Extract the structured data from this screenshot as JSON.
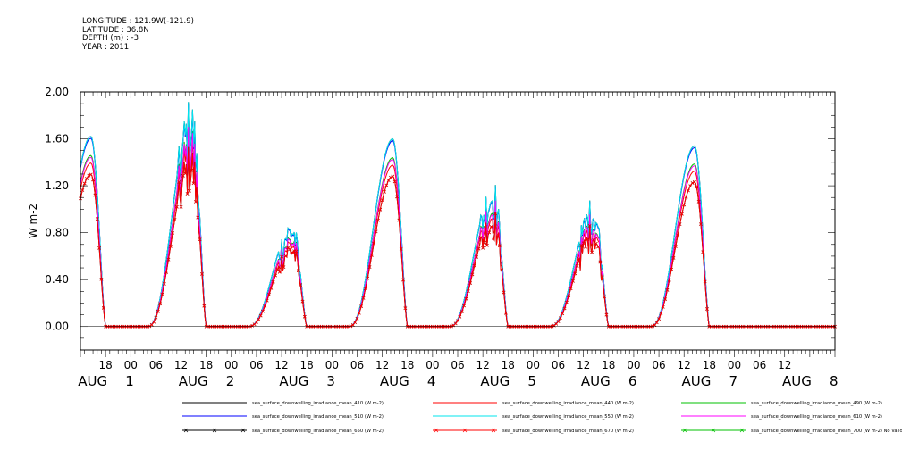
{
  "header": {
    "lines": [
      "LONGITUDE : 121.9W(-121.9)",
      "LATITUDE : 36.8N",
      "DEPTH (m) : -3",
      "YEAR : 2011"
    ]
  },
  "chart_data": {
    "type": "line",
    "ylabel": "W m-2",
    "ylim": [
      -0.2,
      2.0
    ],
    "y_ticks": [
      "2.00",
      "1.60",
      "1.20",
      "0.80",
      "0.40",
      "0.00"
    ],
    "y_tick_values": [
      2.0,
      1.6,
      1.2,
      0.8,
      0.4,
      0.0
    ],
    "x_hour_ticks": [
      "18",
      "00",
      "06",
      "12",
      "18",
      "00",
      "06",
      "12",
      "18",
      "00",
      "06",
      "12",
      "18",
      "00",
      "06",
      "12",
      "18",
      "00",
      "06",
      "12",
      "18",
      "00",
      "06",
      "12",
      "18",
      "00",
      "06",
      "12"
    ],
    "x_date_labels": [
      {
        "month": "AUG",
        "day": "1"
      },
      {
        "month": "AUG",
        "day": "2"
      },
      {
        "month": "AUG",
        "day": "3"
      },
      {
        "month": "AUG",
        "day": "4"
      },
      {
        "month": "AUG",
        "day": "5"
      },
      {
        "month": "AUG",
        "day": "6"
      },
      {
        "month": "AUG",
        "day": "7"
      },
      {
        "month": "AUG",
        "day": "8"
      }
    ],
    "days": [
      {
        "date": "AUG 1",
        "peak_max": 1.62,
        "spiky": false
      },
      {
        "date": "AUG 2",
        "peak_max": 1.8,
        "spiky": true
      },
      {
        "date": "AUG 3",
        "peak_max": 0.86,
        "spiky": true
      },
      {
        "date": "AUG 4",
        "peak_max": 1.6,
        "spiky": false
      },
      {
        "date": "AUG 5",
        "peak_max": 1.17,
        "spiky": true
      },
      {
        "date": "AUG 6",
        "peak_max": 1.02,
        "spiky": true
      },
      {
        "date": "AUG 7",
        "peak_max": 1.54,
        "spiky": false
      }
    ],
    "series": [
      {
        "name": "sea_surface_downwelling_irradiance_mean_410 (W m-2)",
        "color": "#000000",
        "marker": "none",
        "scale": 1.0
      },
      {
        "name": "sea_surface_downwelling_irradiance_mean_440 (W m-2)",
        "color": "#ff0000",
        "marker": "none",
        "scale": 0.86
      },
      {
        "name": "sea_surface_downwelling_irradiance_mean_490 (W m-2)",
        "color": "#00c000",
        "marker": "none",
        "scale": 0.9
      },
      {
        "name": "sea_surface_downwelling_irradiance_mean_510 (W m-2)",
        "color": "#0000ff",
        "marker": "none",
        "scale": 0.99
      },
      {
        "name": "sea_surface_downwelling_irradiance_mean_550 (W m-2)",
        "color": "#00e5ee",
        "marker": "none",
        "scale": 1.0
      },
      {
        "name": "sea_surface_downwelling_irradiance_mean_610 (W m-2)",
        "color": "#ff00ff",
        "marker": "none",
        "scale": 0.89
      },
      {
        "name": "sea_surface_downwelling_irradiance_mean_650 (W m-2)",
        "color": "#000000",
        "marker": "x",
        "scale": 0.8
      },
      {
        "name": "sea_surface_downwelling_irradiance_mean_670 (W m-2)",
        "color": "#ff0000",
        "marker": "x",
        "scale": 0.8
      },
      {
        "name": "sea_surface_downwelling_irradiance_mean_700 (W m-2) No Valid Data",
        "color": "#00c000",
        "marker": "x",
        "scale": 0
      }
    ]
  }
}
